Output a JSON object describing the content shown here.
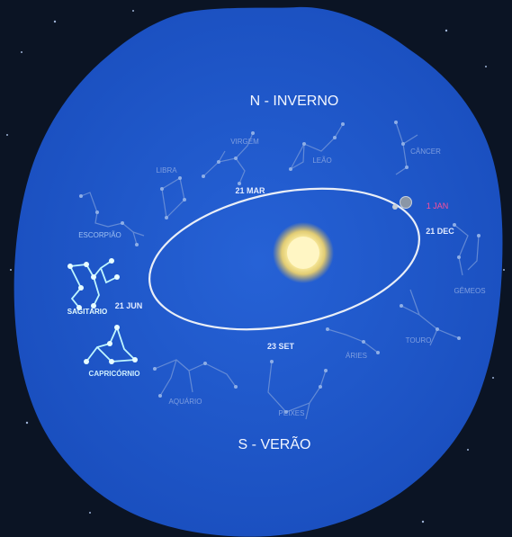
{
  "headings": {
    "north": "N - INVERNO",
    "south": "S - VERÃO"
  },
  "dates": {
    "mar21": "21 MAR",
    "dec21": "21 DEC",
    "jun21": "21 JUN",
    "set23": "23 SET",
    "jan1": "1 JAN"
  },
  "constellations": {
    "virgem": "VIRGEM",
    "leao": "LEÃO",
    "cancer": "CÂNCER",
    "libra": "LIBRA",
    "escorpiao": "ESCORPIÃO",
    "sagitario": "SAGITÁRIO",
    "capricornio": "CAPRICÓRNIO",
    "aquario": "AQUÁRIO",
    "peixes": "PEIXES",
    "aries": "ÁRIES",
    "touro": "TOURO",
    "gemeos": "GÊMEOS"
  },
  "colors": {
    "space": "#0b1424",
    "disc": "#1f57c9",
    "orbit": "#e9eef7",
    "highlight": "#bff6ff",
    "dim_line": "#6f93d8",
    "date_label": "#e2ebff",
    "jan_label": "#ff4f9a",
    "sun": "#fff2a8"
  }
}
